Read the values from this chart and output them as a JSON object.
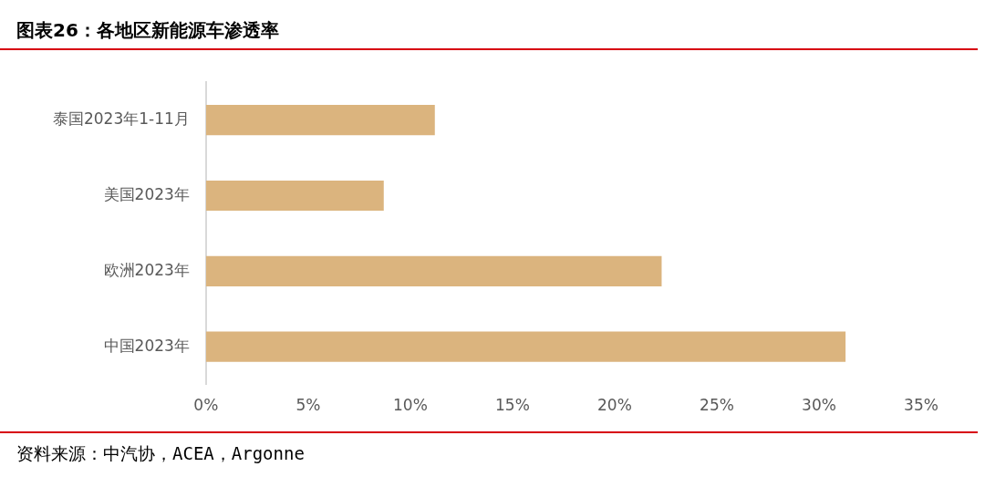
{
  "chart_data": {
    "type": "bar",
    "title": "图表26：各地区新能源车渗透率",
    "orientation": "horizontal",
    "categories": [
      "泰国2023年1-11月",
      "美国2023年",
      "欧洲2023年",
      "中国2023年"
    ],
    "values": [
      11.2,
      8.7,
      22.3,
      31.3
    ],
    "color": "#dbb47e",
    "xlim": [
      0,
      35
    ],
    "xticks": [
      {
        "value": 0,
        "label": "0%"
      },
      {
        "value": 5,
        "label": "5%"
      },
      {
        "value": 10,
        "label": "10%"
      },
      {
        "value": 15,
        "label": "15%"
      },
      {
        "value": 20,
        "label": "20%"
      },
      {
        "value": 25,
        "label": "25%"
      },
      {
        "value": 30,
        "label": "30%"
      },
      {
        "value": 35,
        "label": "35%"
      }
    ],
    "grid": false,
    "legend": false,
    "annotations": [
      "资料来源：中汽协，ACEA，Argonne"
    ]
  }
}
